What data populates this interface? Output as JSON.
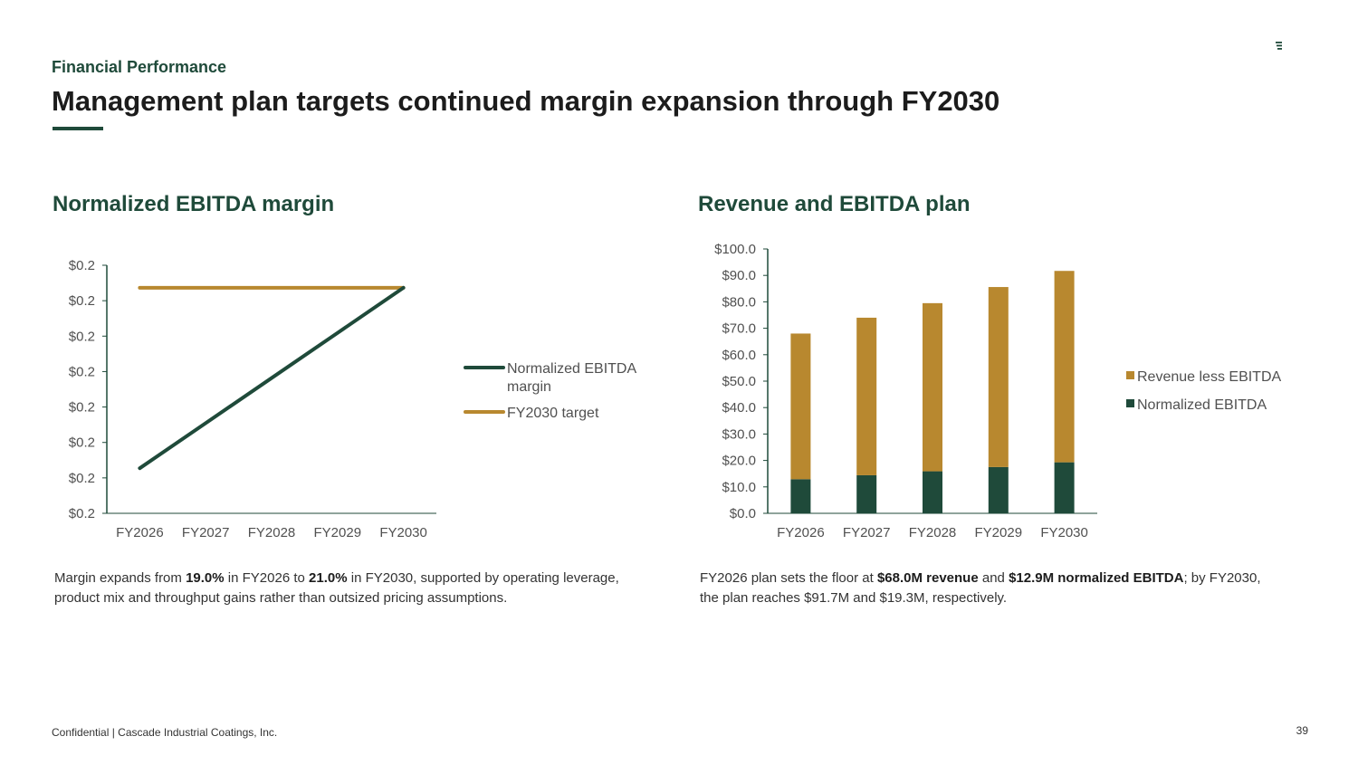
{
  "header": {
    "section_label": "Financial Performance",
    "title": "Management plan targets continued margin expansion through FY2030",
    "logo_text": "CASCADE"
  },
  "colors": {
    "primary": "#1f4a3a",
    "accent": "#b8882f",
    "axis": "#1f4a3a",
    "text": "#505050"
  },
  "left_chart": {
    "heading": "Normalized EBITDA margin",
    "caption": {
      "p1": "Margin expands from ",
      "b1": "19.0%",
      "p2": " in FY2026 to ",
      "b2": "21.0%",
      "p3": " in FY2030, supported by operating leverage, product mix and throughput gains rather than outsized pricing assumptions."
    }
  },
  "right_chart": {
    "heading": "Revenue and EBITDA plan",
    "caption": {
      "p1": "FY2026 plan sets the floor at ",
      "b1": "$68.0M revenue",
      "p2": " and ",
      "b2": "$12.9M normalized EBITDA",
      "p3": "; by FY2030, the plan reaches $91.7M and $19.3M, respectively."
    }
  },
  "chart_data": [
    {
      "type": "line",
      "title": "Normalized EBITDA margin",
      "categories": [
        "FY2026",
        "FY2027",
        "FY2028",
        "FY2029",
        "FY2030"
      ],
      "y_tick_labels": [
        "$0.2",
        "$0.2",
        "$0.2",
        "$0.2",
        "$0.2",
        "$0.2",
        "$0.2",
        "$0.2"
      ],
      "ylim": [
        0.185,
        0.2125
      ],
      "grid": false,
      "legend_position": "right",
      "series": [
        {
          "name": "Normalized EBITDA margin",
          "values": [
            0.19,
            0.195,
            0.2,
            0.205,
            0.21
          ],
          "color": "#1f4a3a"
        },
        {
          "name": "FY2030 target",
          "values": [
            0.21,
            0.21,
            0.21,
            0.21,
            0.21
          ],
          "color": "#b8882f"
        }
      ]
    },
    {
      "type": "bar",
      "stacked": true,
      "title": "Revenue and EBITDA plan",
      "categories": [
        "FY2026",
        "FY2027",
        "FY2028",
        "FY2029",
        "FY2030"
      ],
      "y_tick_labels": [
        "$0.0",
        "$10.0",
        "$20.0",
        "$30.0",
        "$40.0",
        "$50.0",
        "$60.0",
        "$70.0",
        "$80.0",
        "$90.0",
        "$100.0"
      ],
      "ylim": [
        0,
        100
      ],
      "grid": false,
      "legend_position": "right",
      "series": [
        {
          "name": "Normalized EBITDA",
          "values": [
            12.9,
            14.4,
            15.9,
            17.5,
            19.3
          ],
          "color": "#1f4a3a"
        },
        {
          "name": "Revenue less EBITDA",
          "values": [
            55.1,
            59.6,
            63.6,
            68.1,
            72.4
          ],
          "color": "#b8882f"
        }
      ],
      "legend_order": [
        "Revenue less EBITDA",
        "Normalized EBITDA"
      ]
    }
  ],
  "footer": {
    "confidential": "Confidential | Cascade Industrial Coatings, Inc.",
    "page_number": "39"
  }
}
